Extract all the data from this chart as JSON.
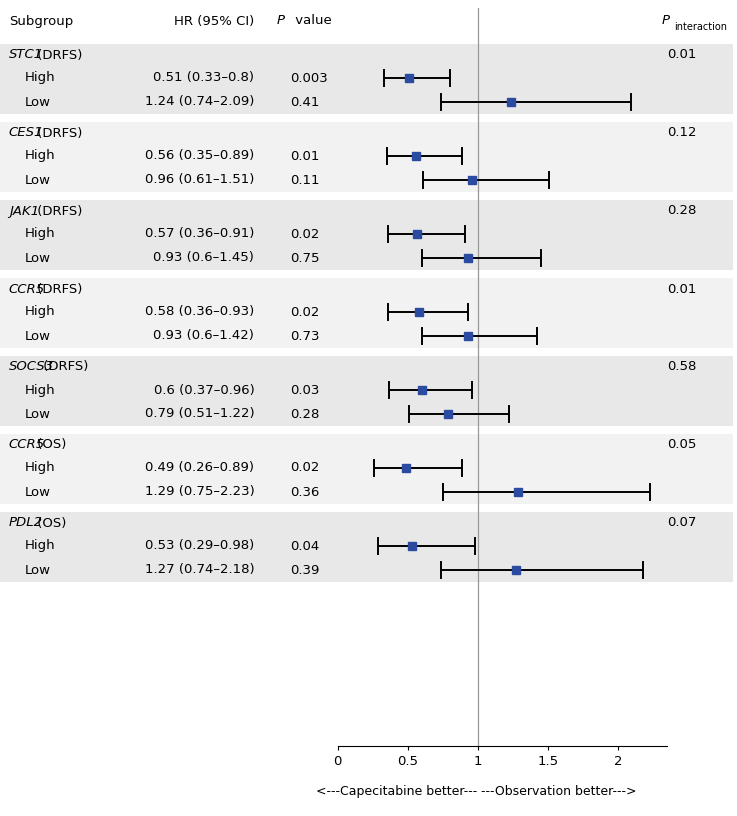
{
  "groups": [
    {
      "label": "STC1",
      "suffix": " (DRFS)",
      "p_interaction": "0.01",
      "bg_color": "#e8e8e8",
      "rows": [
        {
          "subgroup": "High",
          "hr": 0.51,
          "ci_low": 0.33,
          "ci_high": 0.8,
          "hr_text": "0.51 (0.33–0.8)",
          "p_text": "0.003"
        },
        {
          "subgroup": "Low",
          "hr": 1.24,
          "ci_low": 0.74,
          "ci_high": 2.09,
          "hr_text": "1.24 (0.74–2.09)",
          "p_text": "0.41"
        }
      ]
    },
    {
      "label": "CES1",
      "suffix": " (DRFS)",
      "p_interaction": "0.12",
      "bg_color": "#f2f2f2",
      "rows": [
        {
          "subgroup": "High",
          "hr": 0.56,
          "ci_low": 0.35,
          "ci_high": 0.89,
          "hr_text": "0.56 (0.35–0.89)",
          "p_text": "0.01"
        },
        {
          "subgroup": "Low",
          "hr": 0.96,
          "ci_low": 0.61,
          "ci_high": 1.51,
          "hr_text": "0.96 (0.61–1.51)",
          "p_text": "0.11"
        }
      ]
    },
    {
      "label": "JAK1",
      "suffix": " (DRFS)",
      "p_interaction": "0.28",
      "bg_color": "#e8e8e8",
      "rows": [
        {
          "subgroup": "High",
          "hr": 0.57,
          "ci_low": 0.36,
          "ci_high": 0.91,
          "hr_text": "0.57 (0.36–0.91)",
          "p_text": "0.02"
        },
        {
          "subgroup": "Low",
          "hr": 0.93,
          "ci_low": 0.6,
          "ci_high": 1.45,
          "hr_text": "0.93 (0.6–1.45)",
          "p_text": "0.75"
        }
      ]
    },
    {
      "label": "CCR5",
      "suffix": " (DRFS)",
      "p_interaction": "0.01",
      "bg_color": "#f2f2f2",
      "rows": [
        {
          "subgroup": "High",
          "hr": 0.58,
          "ci_low": 0.36,
          "ci_high": 0.93,
          "hr_text": "0.58 (0.36–0.93)",
          "p_text": "0.02"
        },
        {
          "subgroup": "Low",
          "hr": 0.93,
          "ci_low": 0.6,
          "ci_high": 1.42,
          "hr_text": "0.93 (0.6–1.42)",
          "p_text": "0.73"
        }
      ]
    },
    {
      "label": "SOCS3",
      "suffix": " (DRFS)",
      "p_interaction": "0.58",
      "bg_color": "#e8e8e8",
      "rows": [
        {
          "subgroup": "High",
          "hr": 0.6,
          "ci_low": 0.37,
          "ci_high": 0.96,
          "hr_text": "0.6 (0.37–0.96)",
          "p_text": "0.03"
        },
        {
          "subgroup": "Low",
          "hr": 0.79,
          "ci_low": 0.51,
          "ci_high": 1.22,
          "hr_text": "0.79 (0.51–1.22)",
          "p_text": "0.28"
        }
      ]
    },
    {
      "label": "CCR5",
      "suffix": " (OS)",
      "p_interaction": "0.05",
      "bg_color": "#f2f2f2",
      "rows": [
        {
          "subgroup": "High",
          "hr": 0.49,
          "ci_low": 0.26,
          "ci_high": 0.89,
          "hr_text": "0.49 (0.26–0.89)",
          "p_text": "0.02"
        },
        {
          "subgroup": "Low",
          "hr": 1.29,
          "ci_low": 0.75,
          "ci_high": 2.23,
          "hr_text": "1.29 (0.75–2.23)",
          "p_text": "0.36"
        }
      ]
    },
    {
      "label": "PDL2",
      "suffix": " (OS)",
      "p_interaction": "0.07",
      "bg_color": "#e8e8e8",
      "rows": [
        {
          "subgroup": "High",
          "hr": 0.53,
          "ci_low": 0.29,
          "ci_high": 0.98,
          "hr_text": "0.53 (0.29–0.98)",
          "p_text": "0.04"
        },
        {
          "subgroup": "Low",
          "hr": 1.27,
          "ci_low": 0.74,
          "ci_high": 2.18,
          "hr_text": "1.27 (0.74–2.18)",
          "p_text": "0.39"
        }
      ]
    }
  ],
  "x_min": 0.0,
  "x_max": 2.35,
  "x_ticks": [
    0,
    0.5,
    1.0,
    1.5,
    2.0
  ],
  "x_tick_labels": [
    "0",
    "0.5",
    "1",
    "1.5",
    "2"
  ],
  "ref_line": 1.0,
  "marker_color": "#2b4ba0",
  "marker_size": 6,
  "ci_linewidth": 1.4,
  "ref_line_color": "#999999",
  "font_size": 9.5
}
